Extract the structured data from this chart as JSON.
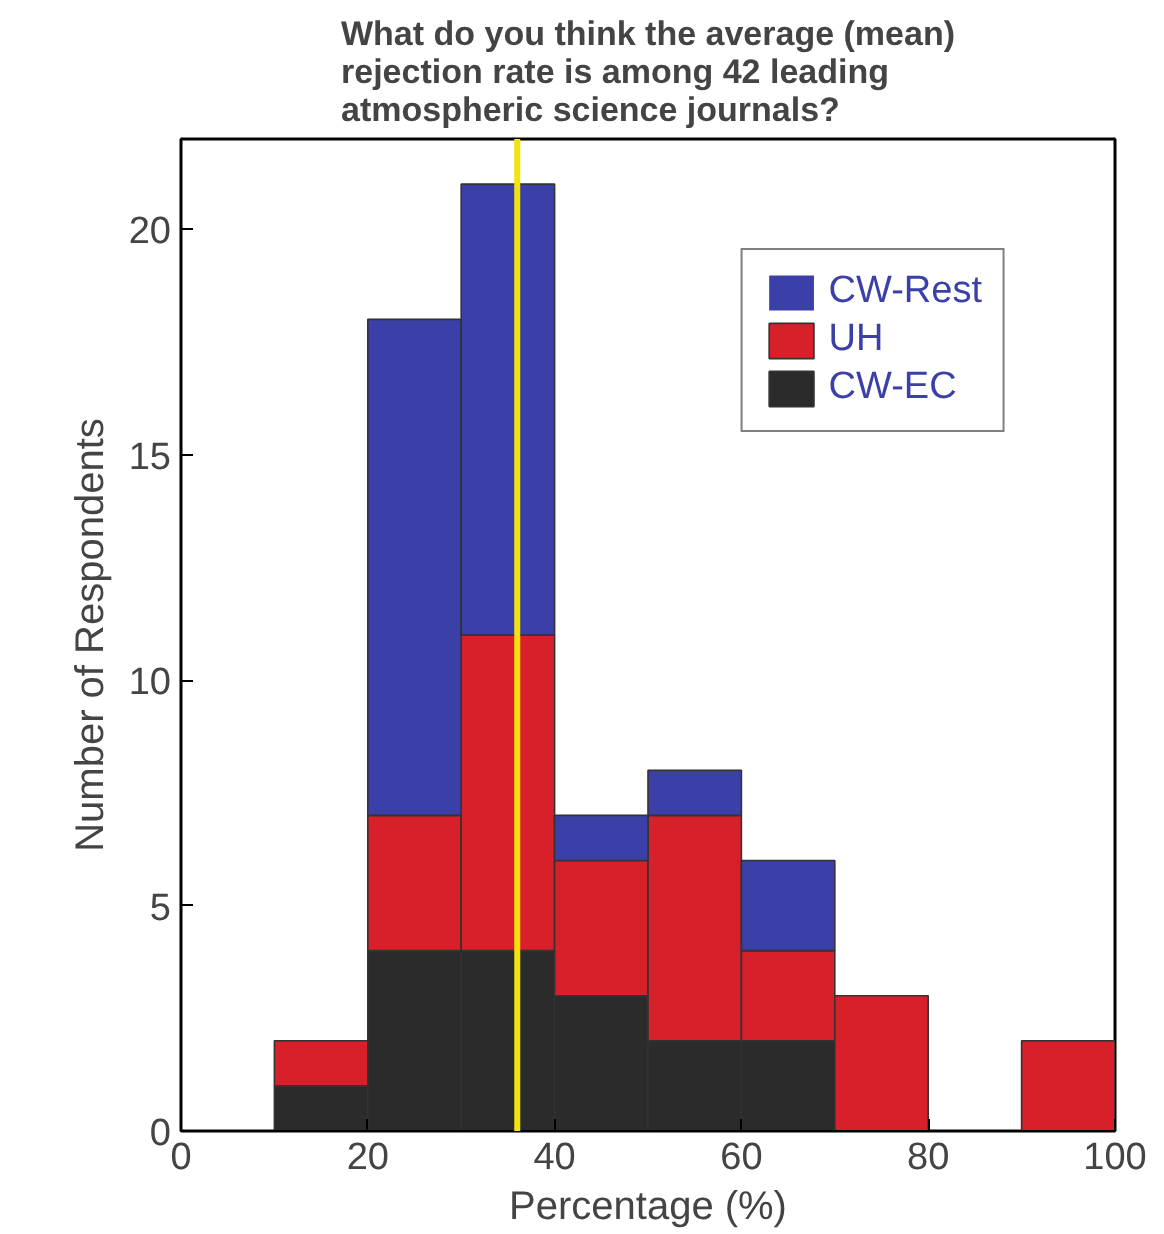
{
  "chart_data": {
    "type": "bar",
    "title": "What do you think the average (mean)\nrejection rate is among 42 leading\natmospheric science journals?",
    "xlabel": "Percentage (%)",
    "ylabel": "Number of Respondents",
    "x": [
      15,
      25,
      35,
      45,
      55,
      65,
      75,
      85,
      95
    ],
    "stacked": true,
    "series": [
      {
        "name": "CW-EC",
        "color": "#2b2b2b",
        "values": [
          1,
          4,
          4,
          3,
          2,
          2,
          0,
          0,
          0
        ]
      },
      {
        "name": "UH",
        "color": "#d8202a",
        "values": [
          1,
          3,
          7,
          3,
          5,
          2,
          3,
          0,
          2
        ]
      },
      {
        "name": "CW-Rest",
        "color": "#3b40a8",
        "values": [
          0,
          11,
          10,
          1,
          1,
          2,
          0,
          0,
          0
        ]
      }
    ],
    "xlim": [
      0,
      100
    ],
    "ylim": [
      0,
      22
    ],
    "xticks": [
      0,
      20,
      40,
      60,
      80,
      100
    ],
    "yticks": [
      0,
      5,
      10,
      15,
      20
    ],
    "ref_lines": [
      {
        "axis": "x",
        "value": 36,
        "color": "#f5e20a"
      }
    ],
    "legend": "top right",
    "grid": false
  }
}
